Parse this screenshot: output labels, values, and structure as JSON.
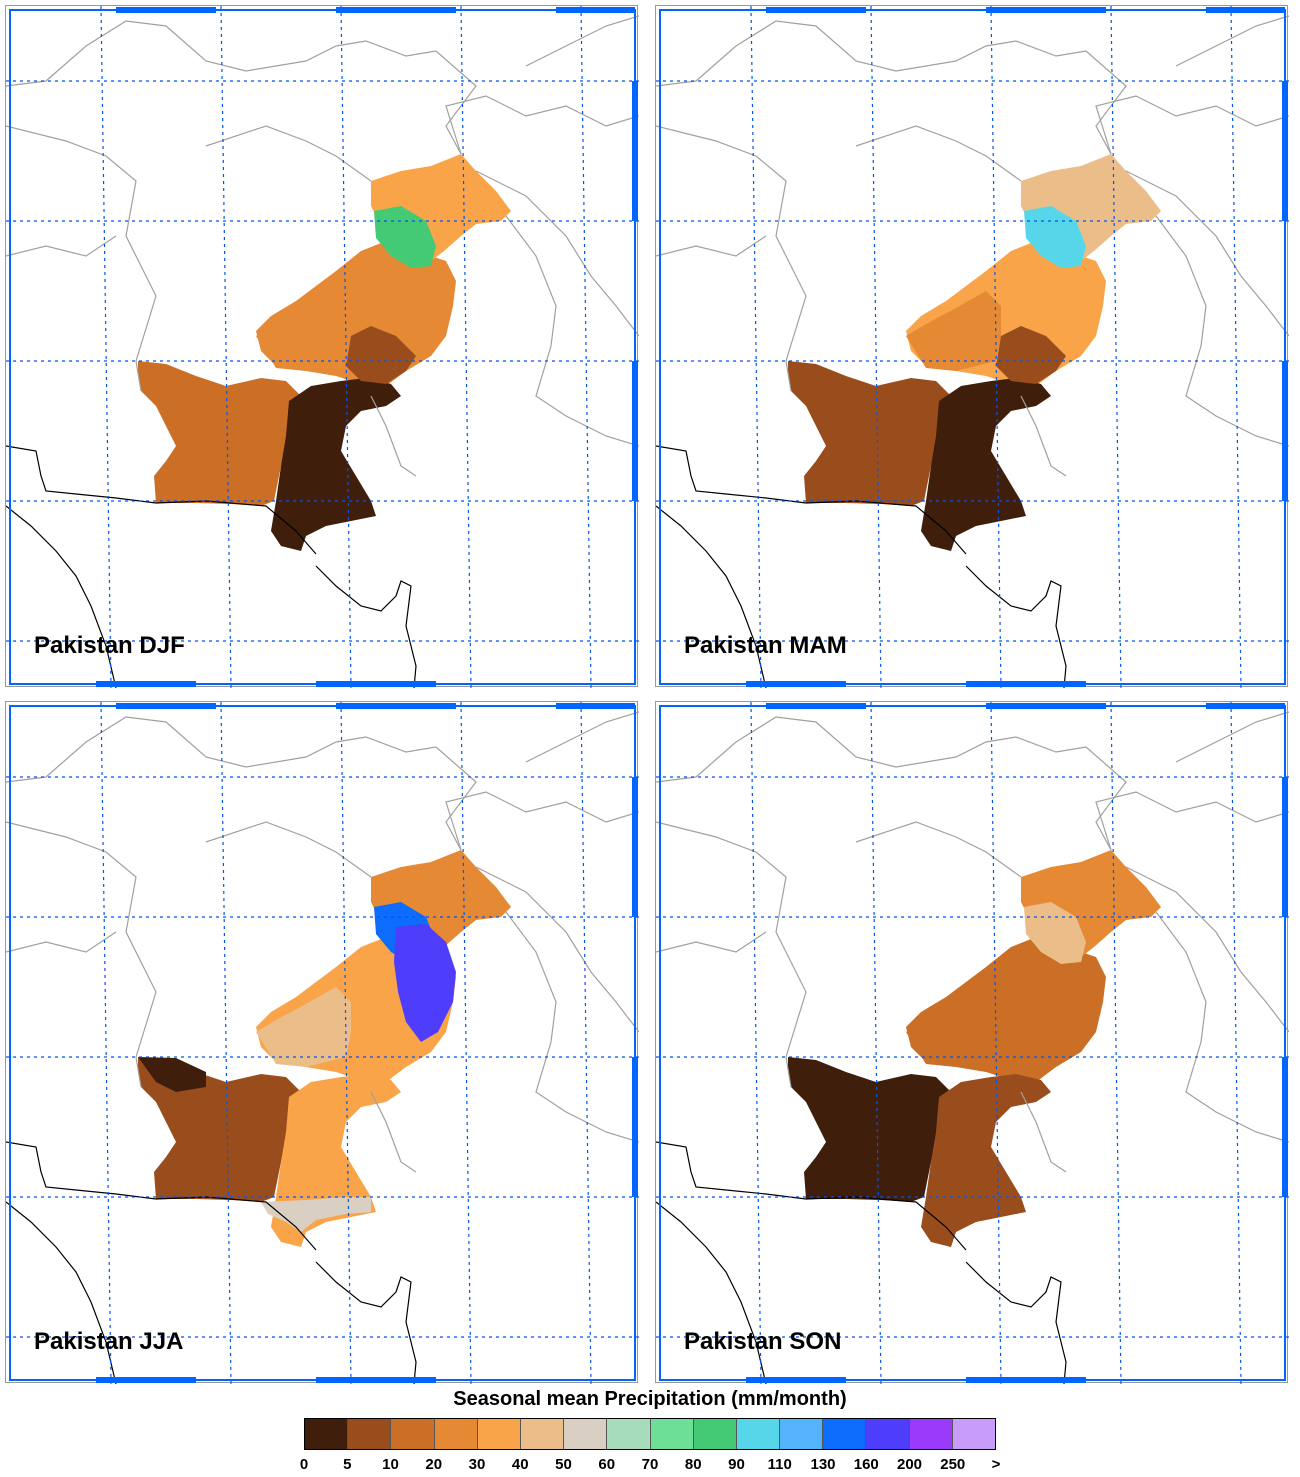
{
  "panels": [
    {
      "title": "Pakistan DJF",
      "season": "DJF"
    },
    {
      "title": "Pakistan MAM",
      "season": "MAM"
    },
    {
      "title": "Pakistan JJA",
      "season": "JJA"
    },
    {
      "title": "Pakistan SON",
      "season": "SON"
    }
  ],
  "legend": {
    "title": "Seasonal mean Precipitation (mm/month)",
    "ticks": [
      "0",
      "5",
      "10",
      "20",
      "30",
      "40",
      "50",
      "60",
      "70",
      "80",
      "90",
      "110",
      "130",
      "160",
      "200",
      "250",
      ">"
    ],
    "colors": [
      "#3f1e0c",
      "#9a4d1c",
      "#cb6f26",
      "#e68935",
      "#f9a448",
      "#ebbd89",
      "#d9d0c3",
      "#a6dcba",
      "#6edf97",
      "#44c975",
      "#57d6ea",
      "#55b3fb",
      "#0d6cfb",
      "#4e3dfb",
      "#9a3bfb",
      "#c89cfb"
    ]
  },
  "colors": {
    "frame_blue": "#0066ff",
    "grid_blue": "#0055ee",
    "border_gray": "#a0a0a0",
    "coast_black": "#000000"
  }
}
